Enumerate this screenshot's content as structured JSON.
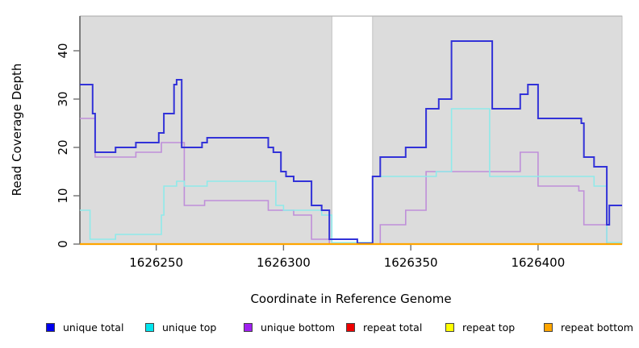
{
  "chart_data": {
    "type": "line",
    "subtype": "step-coverage",
    "title": "",
    "xlabel": "Coordinate in Reference Genome",
    "ylabel": "Read Coverage Depth",
    "xlim": [
      1626220,
      1626433
    ],
    "ylim": [
      0,
      47
    ],
    "x_ticks": [
      "1626250",
      "1626300",
      "1626350",
      "1626400"
    ],
    "x_tick_values": [
      1626250,
      1626300,
      1626350,
      1626400
    ],
    "y_ticks": [
      "0",
      "10",
      "20",
      "30",
      "40"
    ],
    "y_tick_values": [
      0,
      10,
      20,
      30,
      40
    ],
    "grid": false,
    "legend_position": "bottom",
    "background": {
      "panel_color": "#dcdcdc",
      "panel_edge_color": "#c2c2c2",
      "uncovered_gap": {
        "start": 1626319,
        "end": 1626335
      }
    },
    "series": [
      {
        "name": "unique total",
        "color": "#0000ee",
        "line_color": "#3232d8",
        "steps": [
          [
            1626220,
            33
          ],
          [
            1626225,
            27
          ],
          [
            1626226,
            19
          ],
          [
            1626234,
            20
          ],
          [
            1626242,
            21
          ],
          [
            1626251,
            23
          ],
          [
            1626253,
            27
          ],
          [
            1626257,
            33
          ],
          [
            1626258,
            34
          ],
          [
            1626260,
            20
          ],
          [
            1626268,
            21
          ],
          [
            1626270,
            22
          ],
          [
            1626294,
            20
          ],
          [
            1626296,
            19
          ],
          [
            1626299,
            15
          ],
          [
            1626301,
            14
          ],
          [
            1626304,
            13
          ],
          [
            1626311,
            8
          ],
          [
            1626315,
            7
          ],
          [
            1626318,
            1
          ],
          [
            1626329,
            0
          ],
          [
            1626335,
            14
          ],
          [
            1626338,
            18
          ],
          [
            1626348,
            20
          ],
          [
            1626356,
            28
          ],
          [
            1626361,
            30
          ],
          [
            1626366,
            42
          ],
          [
            1626382,
            28
          ],
          [
            1626393,
            31
          ],
          [
            1626396,
            33
          ],
          [
            1626400,
            26
          ],
          [
            1626417,
            25
          ],
          [
            1626418,
            18
          ],
          [
            1626422,
            16
          ],
          [
            1626427,
            4
          ],
          [
            1626428,
            8
          ]
        ]
      },
      {
        "name": "unique top",
        "color": "#00e5ee",
        "line_color": "#8feaea",
        "steps": [
          [
            1626220,
            7
          ],
          [
            1626224,
            1
          ],
          [
            1626234,
            2
          ],
          [
            1626252,
            6
          ],
          [
            1626253,
            12
          ],
          [
            1626258,
            13
          ],
          [
            1626261,
            12
          ],
          [
            1626270,
            13
          ],
          [
            1626297,
            8
          ],
          [
            1626300,
            7
          ],
          [
            1626315,
            6
          ],
          [
            1626319,
            0
          ],
          [
            1626335,
            14
          ],
          [
            1626360,
            15
          ],
          [
            1626366,
            28
          ],
          [
            1626381,
            14
          ],
          [
            1626422,
            12
          ],
          [
            1626427,
            0
          ]
        ]
      },
      {
        "name": "unique bottom",
        "color": "#a020f0",
        "line_color": "#bf8fd9",
        "steps": [
          [
            1626220,
            26
          ],
          [
            1626226,
            18
          ],
          [
            1626242,
            19
          ],
          [
            1626252,
            21
          ],
          [
            1626261,
            8
          ],
          [
            1626269,
            9
          ],
          [
            1626294,
            7
          ],
          [
            1626304,
            6
          ],
          [
            1626311,
            1
          ],
          [
            1626318,
            0
          ],
          [
            1626338,
            4
          ],
          [
            1626348,
            7
          ],
          [
            1626356,
            15
          ],
          [
            1626393,
            19
          ],
          [
            1626400,
            12
          ],
          [
            1626416,
            11
          ],
          [
            1626418,
            4
          ],
          [
            1626427,
            0
          ]
        ]
      },
      {
        "name": "repeat total",
        "color": "#ee0000",
        "line_color": "#ee0000",
        "steps": [
          [
            1626220,
            0
          ]
        ]
      },
      {
        "name": "repeat top",
        "color": "#ffff00",
        "line_color": "#ffff00",
        "steps": [
          [
            1626220,
            0
          ]
        ]
      },
      {
        "name": "repeat bottom",
        "color": "#ffa500",
        "line_color": "#ffa500",
        "steps": [
          [
            1626220,
            0
          ]
        ]
      }
    ]
  }
}
